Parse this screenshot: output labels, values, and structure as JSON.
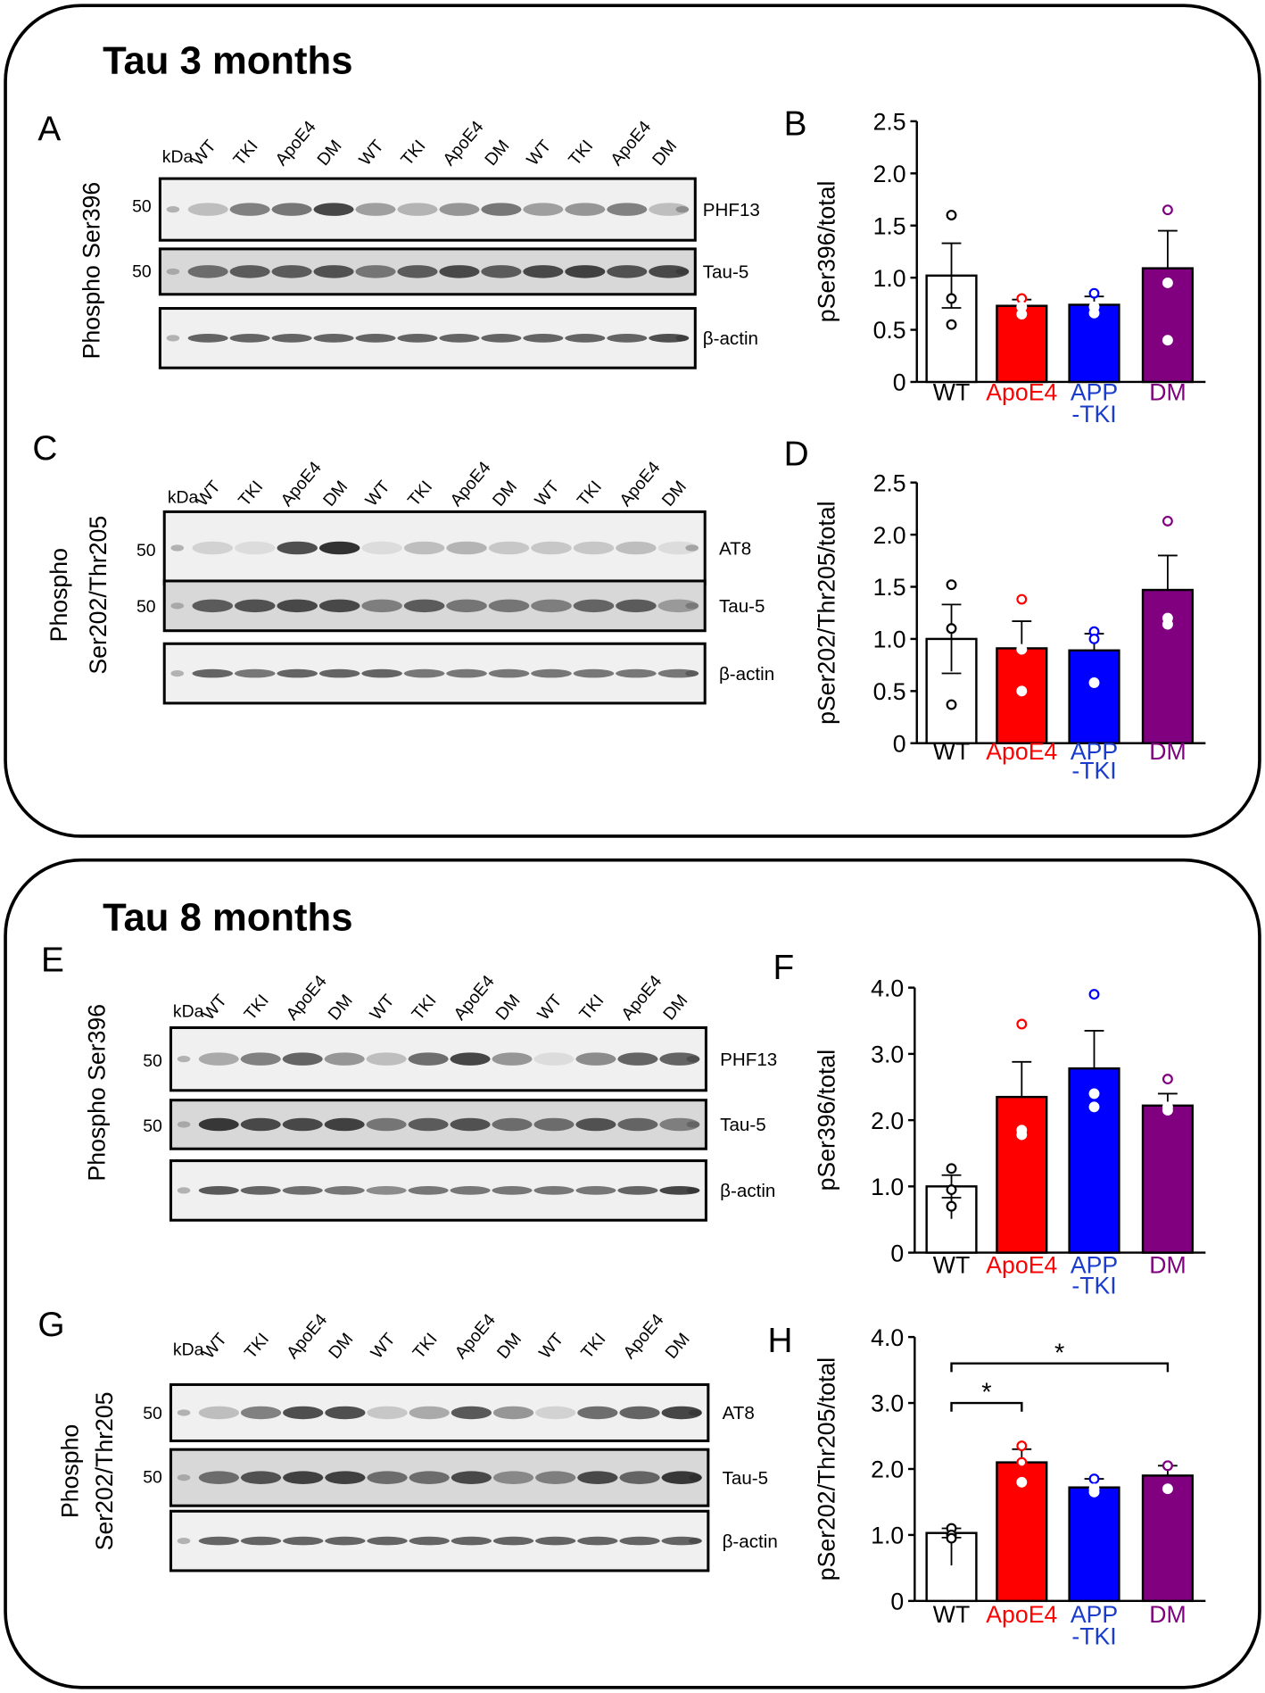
{
  "sections": [
    {
      "title": "Tau 3 months"
    },
    {
      "title": "Tau 8 months"
    }
  ],
  "blots": [
    {
      "letter": "A",
      "ylabel": [
        "Phospho Ser396"
      ],
      "kda": "kDa",
      "lanes": [
        "WT",
        "TKI",
        "ApoE4",
        "DM",
        "WT",
        "TKI",
        "ApoE4",
        "DM",
        "WT",
        "TKI",
        "ApoE4",
        "DM"
      ],
      "markers": [
        "50",
        "50"
      ],
      "bands": [
        "PHF13",
        "Tau-5",
        "β-actin"
      ]
    },
    {
      "letter": "C",
      "ylabel": [
        "Phospho",
        "Ser202/Thr205"
      ],
      "kda": "kDa",
      "lanes": [
        "WT",
        "TKI",
        "ApoE4",
        "DM",
        "WT",
        "TKI",
        "ApoE4",
        "DM",
        "WT",
        "TKI",
        "ApoE4",
        "DM"
      ],
      "markers": [
        "50",
        "50"
      ],
      "bands": [
        "AT8",
        "Tau-5",
        "β-actin"
      ]
    },
    {
      "letter": "E",
      "ylabel": [
        "Phospho Ser396"
      ],
      "kda": "kDa",
      "lanes": [
        "WT",
        "TKI",
        "ApoE4",
        "DM",
        "WT",
        "TKI",
        "ApoE4",
        "DM",
        "WT",
        "TKI",
        "ApoE4",
        "DM"
      ],
      "markers": [
        "50",
        "50"
      ],
      "bands": [
        "PHF13",
        "Tau-5",
        "β-actin"
      ]
    },
    {
      "letter": "G",
      "ylabel": [
        "Phospho",
        "Ser202/Thr205"
      ],
      "kda": "kDa",
      "lanes": [
        "WT",
        "TKI",
        "ApoE4",
        "DM",
        "WT",
        "TKI",
        "ApoE4",
        "DM",
        "WT",
        "TKI",
        "ApoE4",
        "DM"
      ],
      "markers": [
        "50",
        "50"
      ],
      "bands": [
        "AT8",
        "Tau-5",
        "β-actin"
      ]
    }
  ],
  "colors": {
    "WT": "#ffffff",
    "ApoE4": "#ff0000",
    "APP-TKI": "#0000ff",
    "DM": "#800080",
    "label_WT": "#000000",
    "label_ApoE4": "#ff0000",
    "label_APP-TKI": "#1a3ccc",
    "label_DM": "#800080"
  },
  "chart_data": [
    {
      "letter": "B",
      "type": "bar",
      "ylabel": "pSer396/total",
      "ylim": [
        0,
        2.5
      ],
      "yticks": [
        "0",
        "0.5",
        "1.0",
        "1.5",
        "2.0",
        "2.5"
      ],
      "ytick_values": [
        0,
        0.5,
        1.0,
        1.5,
        2.0,
        2.5
      ],
      "categories": [
        "WT",
        "ApoE4",
        "APP-TKI",
        "DM"
      ],
      "category_labels": [
        [
          "WT"
        ],
        [
          "ApoE4"
        ],
        [
          "APP",
          "-TKI"
        ],
        [
          "DM"
        ]
      ],
      "values": [
        1.02,
        0.73,
        0.74,
        1.09
      ],
      "sem": [
        0.31,
        0.06,
        0.08,
        0.36
      ],
      "points": [
        [
          1.6,
          0.8,
          0.55
        ],
        [
          0.8,
          0.72,
          0.65
        ],
        [
          0.85,
          0.72,
          0.66
        ],
        [
          1.65,
          0.95,
          0.4
        ]
      ],
      "significance": []
    },
    {
      "letter": "D",
      "type": "bar",
      "ylabel": "pSer202/Thr205/total",
      "ylim": [
        0,
        2.5
      ],
      "yticks": [
        "0",
        "0.5",
        "1.0",
        "1.5",
        "2.0",
        "2.5"
      ],
      "ytick_values": [
        0,
        0.5,
        1.0,
        1.5,
        2.0,
        2.5
      ],
      "categories": [
        "WT",
        "ApoE4",
        "APP-TKI",
        "DM"
      ],
      "category_labels": [
        [
          "WT"
        ],
        [
          "ApoE4"
        ],
        [
          "APP",
          "-TKI"
        ],
        [
          "DM"
        ]
      ],
      "values": [
        1.0,
        0.91,
        0.89,
        1.47
      ],
      "sem": [
        0.33,
        0.26,
        0.16,
        0.33
      ],
      "points": [
        [
          1.52,
          1.1,
          0.37
        ],
        [
          1.38,
          0.9,
          0.5
        ],
        [
          1.07,
          1.0,
          0.58
        ],
        [
          2.13,
          1.2,
          1.14
        ]
      ],
      "significance": []
    },
    {
      "letter": "F",
      "type": "bar",
      "ylabel": "pSer396/total",
      "ylim": [
        0,
        4.0
      ],
      "yticks": [
        "0",
        "1.0",
        "2.0",
        "3.0",
        "4.0"
      ],
      "ytick_values": [
        0,
        1,
        2,
        3,
        4
      ],
      "categories": [
        "WT",
        "ApoE4",
        "APP-TKI",
        "DM"
      ],
      "category_labels": [
        [
          "WT"
        ],
        [
          "ApoE4"
        ],
        [
          "APP",
          "-TKI"
        ],
        [
          "DM"
        ]
      ],
      "values": [
        1.0,
        2.35,
        2.78,
        2.22
      ],
      "sem": [
        0.17,
        0.53,
        0.57,
        0.18
      ],
      "points": [
        [
          1.27,
          0.95,
          0.7
        ],
        [
          3.45,
          1.85,
          1.78
        ],
        [
          3.9,
          2.4,
          2.2
        ],
        [
          2.62,
          2.2,
          2.15
        ]
      ],
      "significance": []
    },
    {
      "letter": "H",
      "type": "bar",
      "ylabel": "pSer202/Thr205/total",
      "ylim": [
        0,
        4.0
      ],
      "yticks": [
        "0",
        "1.0",
        "2.0",
        "3.0",
        "4.0"
      ],
      "ytick_values": [
        0,
        1,
        2,
        3,
        4
      ],
      "categories": [
        "WT",
        "ApoE4",
        "APP-TKI",
        "DM"
      ],
      "category_labels": [
        [
          "WT"
        ],
        [
          "ApoE4"
        ],
        [
          "APP",
          "-TKI"
        ],
        [
          "DM"
        ]
      ],
      "values": [
        1.03,
        2.1,
        1.72,
        1.9
      ],
      "sem": [
        0.07,
        0.2,
        0.13,
        0.15
      ],
      "points": [
        [
          1.1,
          1.0,
          0.95
        ],
        [
          2.35,
          2.1,
          1.8
        ],
        [
          1.85,
          1.7,
          1.65
        ],
        [
          2.05,
          2.05,
          1.7
        ]
      ],
      "significance": [
        {
          "from": "WT",
          "to": "ApoE4",
          "label": "*",
          "level": 3.0
        },
        {
          "from": "WT",
          "to": "DM",
          "label": "*",
          "level": 3.6
        }
      ]
    }
  ]
}
